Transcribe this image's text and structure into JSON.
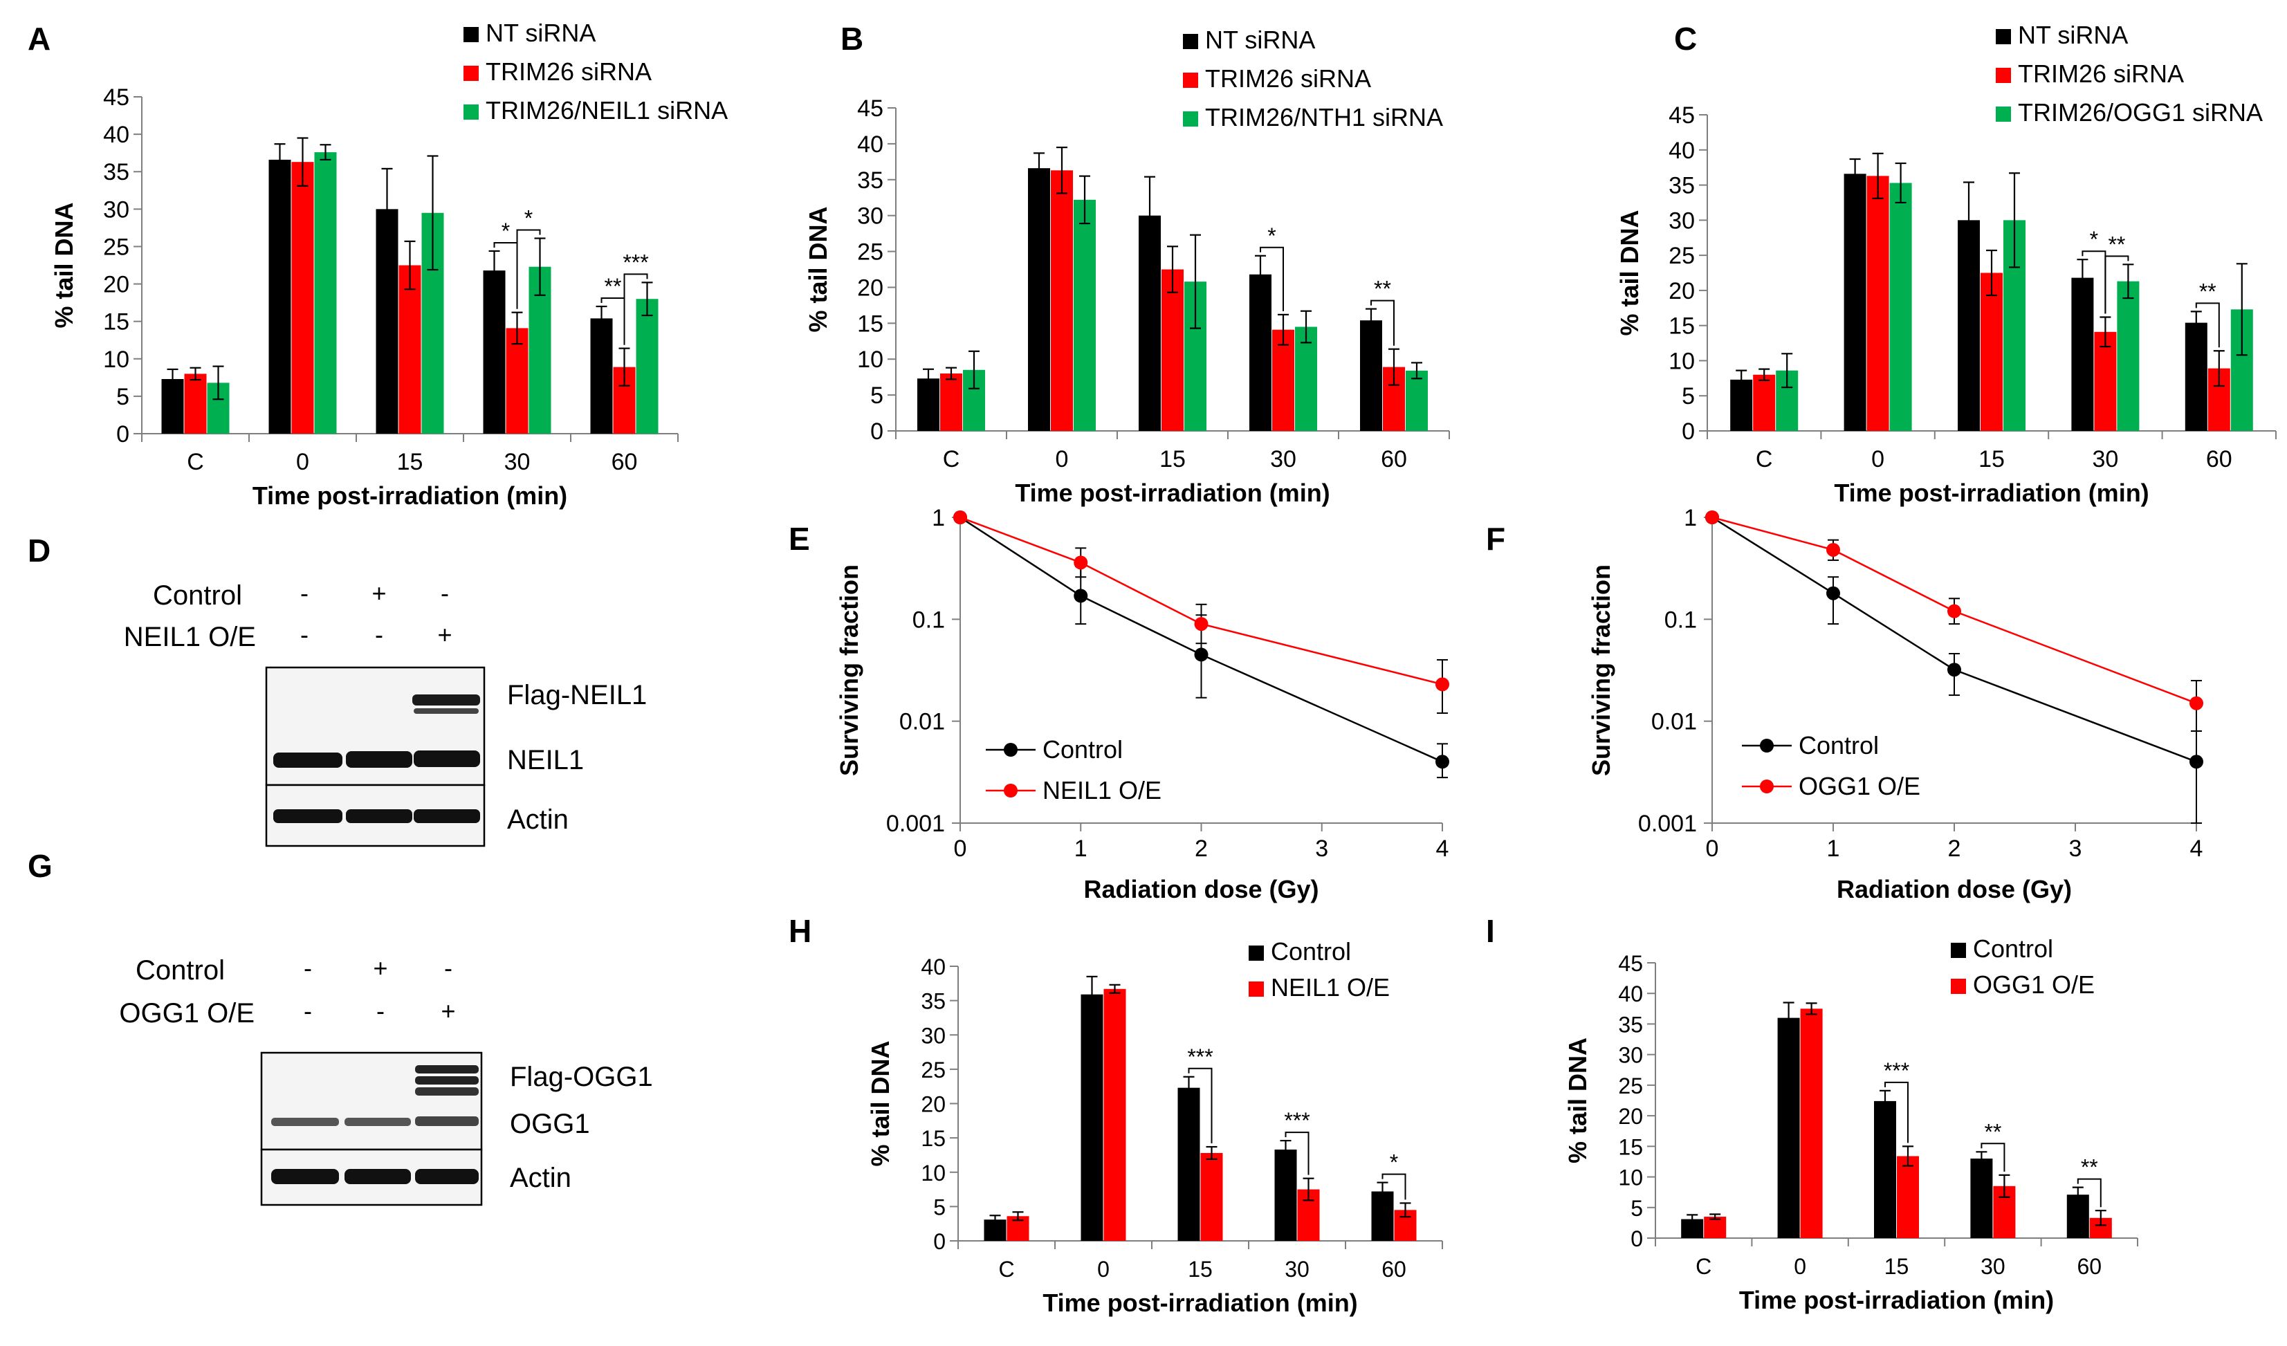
{
  "figure": {
    "panel_letters": [
      "A",
      "B",
      "C",
      "D",
      "E",
      "F",
      "G",
      "H",
      "I"
    ],
    "colors": {
      "black": "#000000",
      "red": "#ff0000",
      "green": "#00b050",
      "axis": "#7f7f7f"
    }
  },
  "blots": [
    {
      "letter": "D",
      "row_labels": [
        "Control",
        "NEIL1 O/E"
      ],
      "signs": [
        [
          "-",
          "+",
          "-"
        ],
        [
          "-",
          "-",
          "+"
        ]
      ],
      "band_labels": [
        "Flag-NEIL1",
        "NEIL1",
        "Actin"
      ]
    },
    {
      "letter": "G",
      "row_labels": [
        "Control",
        "OGG1 O/E"
      ],
      "signs": [
        [
          "-",
          "+",
          "-"
        ],
        [
          "-",
          "-",
          "+"
        ]
      ],
      "band_labels": [
        "Flag-OGG1",
        "OGG1",
        "Actin"
      ]
    }
  ],
  "chart_data": [
    {
      "letter": "A",
      "type": "bar",
      "categories": [
        "C",
        "0",
        "15",
        "30",
        "60"
      ],
      "xlabel": "Time post-irradiation (min)",
      "ylabel": "% tail DNA",
      "ylim": [
        0,
        45
      ],
      "yticks": [
        0,
        5,
        10,
        15,
        20,
        25,
        30,
        35,
        40,
        45
      ],
      "series": [
        {
          "name": "NT siRNA",
          "color": "#000000",
          "values": [
            7.3,
            36.6,
            30.0,
            21.8,
            15.4
          ],
          "errors": [
            1.3,
            2.1,
            5.4,
            2.6,
            1.6
          ]
        },
        {
          "name": "TRIM26 siRNA",
          "color": "#ff0000",
          "values": [
            8.0,
            36.3,
            22.5,
            14.1,
            8.9
          ],
          "errors": [
            0.8,
            3.2,
            3.2,
            2.1,
            2.5
          ]
        },
        {
          "name": "TRIM26/NEIL1 siRNA",
          "color": "#00b050",
          "values": [
            6.8,
            37.6,
            29.5,
            22.3,
            18.0
          ],
          "errors": [
            2.2,
            1.0,
            7.6,
            3.8,
            2.2
          ]
        }
      ],
      "significance": [
        {
          "category": "30",
          "from": 0,
          "to": 1,
          "label": "*"
        },
        {
          "category": "30",
          "from": 1,
          "to": 2,
          "label": "*"
        },
        {
          "category": "60",
          "from": 0,
          "to": 1,
          "label": "**"
        },
        {
          "category": "60",
          "from": 1,
          "to": 2,
          "label": "***"
        }
      ]
    },
    {
      "letter": "B",
      "type": "bar",
      "categories": [
        "C",
        "0",
        "15",
        "30",
        "60"
      ],
      "xlabel": "Time post-irradiation (min)",
      "ylabel": "% tail DNA",
      "ylim": [
        0,
        45
      ],
      "yticks": [
        0,
        5,
        10,
        15,
        20,
        25,
        30,
        35,
        40,
        45
      ],
      "series": [
        {
          "name": "NT siRNA",
          "color": "#000000",
          "values": [
            7.3,
            36.6,
            30.0,
            21.8,
            15.4
          ],
          "errors": [
            1.3,
            2.1,
            5.4,
            2.6,
            1.6
          ]
        },
        {
          "name": "TRIM26 siRNA",
          "color": "#ff0000",
          "values": [
            8.0,
            36.3,
            22.5,
            14.1,
            8.9
          ],
          "errors": [
            0.8,
            3.2,
            3.2,
            2.1,
            2.5
          ]
        },
        {
          "name": "TRIM26/NTH1 siRNA",
          "color": "#00b050",
          "values": [
            8.5,
            32.2,
            20.8,
            14.5,
            8.4
          ],
          "errors": [
            2.6,
            3.3,
            6.5,
            2.2,
            1.1
          ]
        }
      ],
      "significance": [
        {
          "category": "30",
          "from": 0,
          "to": 1,
          "label": "*"
        },
        {
          "category": "60",
          "from": 0,
          "to": 1,
          "label": "**"
        }
      ]
    },
    {
      "letter": "C",
      "type": "bar",
      "categories": [
        "C",
        "0",
        "15",
        "30",
        "60"
      ],
      "xlabel": "Time post-irradiation (min)",
      "ylabel": "% tail DNA",
      "ylim": [
        0,
        45
      ],
      "yticks": [
        0,
        5,
        10,
        15,
        20,
        25,
        30,
        35,
        40,
        45
      ],
      "series": [
        {
          "name": "NT siRNA",
          "color": "#000000",
          "values": [
            7.3,
            36.6,
            30.0,
            21.8,
            15.4
          ],
          "errors": [
            1.3,
            2.1,
            5.4,
            2.6,
            1.6
          ]
        },
        {
          "name": "TRIM26 siRNA",
          "color": "#ff0000",
          "values": [
            8.0,
            36.3,
            22.5,
            14.1,
            8.9
          ],
          "errors": [
            0.8,
            3.2,
            3.2,
            2.1,
            2.5
          ]
        },
        {
          "name": "TRIM26/OGG1 siRNA",
          "color": "#00b050",
          "values": [
            8.6,
            35.3,
            30.0,
            21.3,
            17.3
          ],
          "errors": [
            2.4,
            2.8,
            6.7,
            2.4,
            6.5
          ]
        }
      ],
      "significance": [
        {
          "category": "30",
          "from": 0,
          "to": 1,
          "label": "*"
        },
        {
          "category": "30",
          "from": 1,
          "to": 2,
          "label": "**"
        },
        {
          "category": "60",
          "from": 0,
          "to": 1,
          "label": "**"
        }
      ]
    },
    {
      "letter": "E",
      "type": "line",
      "yscale": "log",
      "xlabel": "Radiation dose (Gy)",
      "ylabel": "Surviving fraction",
      "xlim": [
        0,
        4
      ],
      "xticks": [
        0,
        1,
        2,
        3,
        4
      ],
      "ylim": [
        0.001,
        1
      ],
      "yticks": [
        1,
        0.1,
        0.01,
        0.001
      ],
      "series": [
        {
          "name": "Control",
          "color": "#000000",
          "x": [
            0,
            1,
            2,
            4
          ],
          "y": [
            1,
            0.17,
            0.045,
            0.004
          ],
          "err_lo": [
            1,
            0.09,
            0.017,
            0.0028
          ],
          "err_hi": [
            1,
            0.33,
            0.11,
            0.006
          ]
        },
        {
          "name": "NEIL1 O/E",
          "color": "#ff0000",
          "x": [
            0,
            1,
            2,
            4
          ],
          "y": [
            1,
            0.36,
            0.09,
            0.023
          ],
          "err_lo": [
            1,
            0.26,
            0.058,
            0.012
          ],
          "err_hi": [
            1,
            0.5,
            0.14,
            0.04
          ]
        }
      ]
    },
    {
      "letter": "F",
      "type": "line",
      "yscale": "log",
      "xlabel": "Radiation dose (Gy)",
      "ylabel": "Surviving fraction",
      "xlim": [
        0,
        4
      ],
      "xticks": [
        0,
        1,
        2,
        3,
        4
      ],
      "ylim": [
        0.001,
        1
      ],
      "yticks": [
        1,
        0.1,
        0.01,
        0.001
      ],
      "series": [
        {
          "name": "Control",
          "color": "#000000",
          "x": [
            0,
            1,
            2,
            4
          ],
          "y": [
            1,
            0.18,
            0.032,
            0.004
          ],
          "err_lo": [
            1,
            0.09,
            0.018,
            0.001
          ],
          "err_hi": [
            1,
            0.26,
            0.046,
            0.008
          ]
        },
        {
          "name": "OGG1 O/E",
          "color": "#ff0000",
          "x": [
            0,
            1,
            2,
            4
          ],
          "y": [
            1,
            0.48,
            0.12,
            0.015
          ],
          "err_lo": [
            1,
            0.38,
            0.09,
            0.008
          ],
          "err_hi": [
            1,
            0.6,
            0.16,
            0.025
          ]
        }
      ]
    },
    {
      "letter": "H",
      "type": "bar",
      "categories": [
        "C",
        "0",
        "15",
        "30",
        "60"
      ],
      "xlabel": "Time post-irradiation (min)",
      "ylabel": "% tail DNA",
      "ylim": [
        0,
        40
      ],
      "yticks": [
        0,
        5,
        10,
        15,
        20,
        25,
        30,
        35,
        40
      ],
      "series": [
        {
          "name": "Control",
          "color": "#000000",
          "values": [
            3.1,
            35.9,
            22.3,
            13.3,
            7.2
          ],
          "errors": [
            0.6,
            2.6,
            1.6,
            1.3,
            1.3
          ]
        },
        {
          "name": "NEIL1 O/E",
          "color": "#ff0000",
          "values": [
            3.6,
            36.7,
            12.8,
            7.5,
            4.5
          ],
          "errors": [
            0.6,
            0.6,
            0.9,
            1.6,
            1.0
          ]
        }
      ],
      "significance": [
        {
          "category": "15",
          "from": 0,
          "to": 1,
          "label": "***"
        },
        {
          "category": "30",
          "from": 0,
          "to": 1,
          "label": "***"
        },
        {
          "category": "60",
          "from": 0,
          "to": 1,
          "label": "*"
        }
      ]
    },
    {
      "letter": "I",
      "type": "bar",
      "categories": [
        "C",
        "0",
        "15",
        "30",
        "60"
      ],
      "xlabel": "Time post-irradiation (min)",
      "ylabel": "% tail DNA",
      "ylim": [
        0,
        45
      ],
      "yticks": [
        0,
        5,
        10,
        15,
        20,
        25,
        30,
        35,
        40,
        45
      ],
      "series": [
        {
          "name": "Control",
          "color": "#000000",
          "values": [
            3.1,
            36.0,
            22.4,
            13.0,
            7.1
          ],
          "errors": [
            0.7,
            2.5,
            1.7,
            1.1,
            1.2
          ]
        },
        {
          "name": "OGG1 O/E",
          "color": "#ff0000",
          "values": [
            3.5,
            37.5,
            13.4,
            8.5,
            3.3
          ],
          "errors": [
            0.4,
            0.9,
            1.6,
            1.8,
            1.2
          ]
        }
      ],
      "significance": [
        {
          "category": "15",
          "from": 0,
          "to": 1,
          "label": "***"
        },
        {
          "category": "30",
          "from": 0,
          "to": 1,
          "label": "**"
        },
        {
          "category": "60",
          "from": 0,
          "to": 1,
          "label": "**"
        }
      ]
    }
  ]
}
